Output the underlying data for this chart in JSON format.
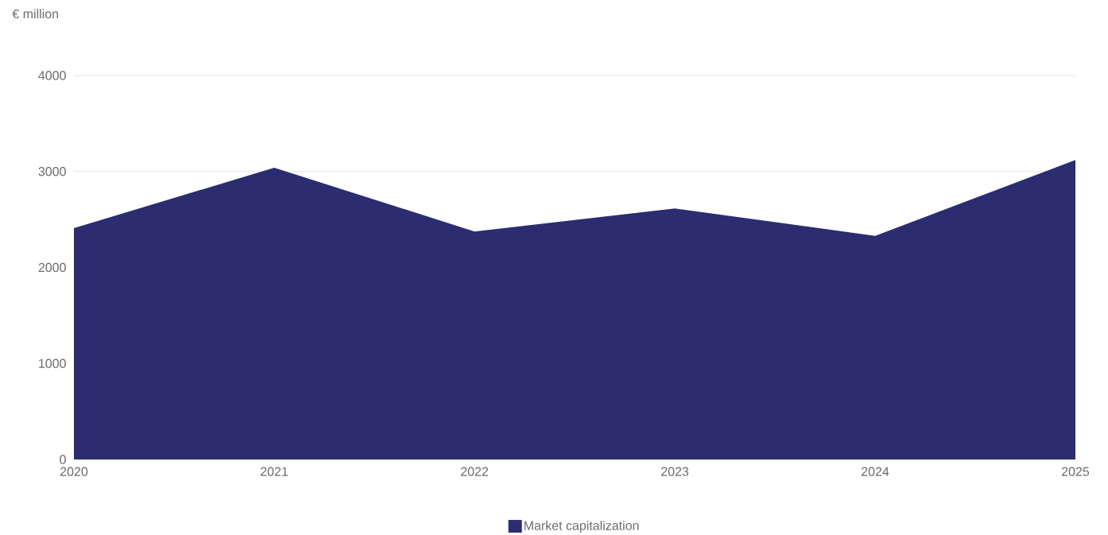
{
  "chart_data": {
    "type": "area",
    "ylabel": "€ million",
    "categories": [
      "2020",
      "2021",
      "2022",
      "2023",
      "2024",
      "2025"
    ],
    "series": [
      {
        "name": "Market capitalization",
        "color": "#2b2d70",
        "values": [
          2410,
          3040,
          2375,
          2615,
          2330,
          3120
        ]
      }
    ],
    "ylim": [
      0,
      4000
    ],
    "yticks": [
      0,
      1000,
      2000,
      3000,
      4000
    ],
    "grid": "y",
    "legend": "bottom"
  }
}
